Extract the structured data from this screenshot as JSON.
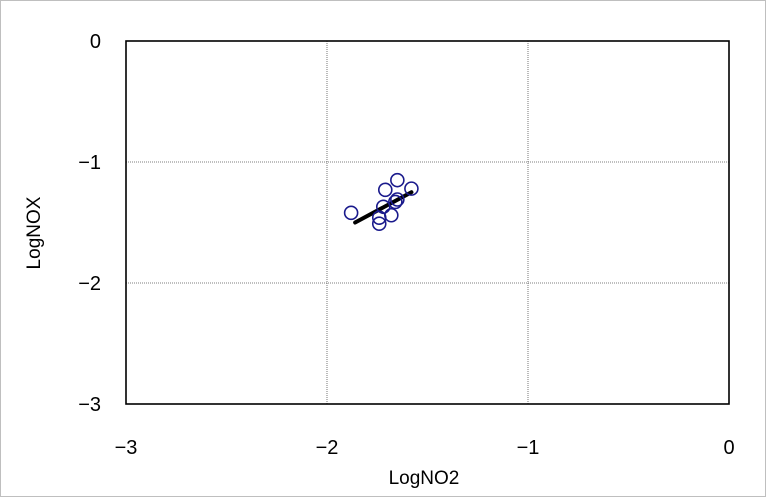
{
  "chart_data": {
    "type": "scatter",
    "xlabel": "LogNO2",
    "ylabel": "LogNOX",
    "xlim": [
      -3,
      0
    ],
    "ylim": [
      -3,
      0
    ],
    "x_ticks": [
      -3,
      -2,
      -1,
      0
    ],
    "y_ticks": [
      0,
      -1,
      -2,
      -3
    ],
    "x_tick_labels": [
      "−3",
      "−2",
      "−1",
      "0"
    ],
    "y_tick_labels": [
      "0",
      "−1",
      "−2",
      "−3"
    ],
    "grid": true,
    "grid_style": "dotted",
    "marker_color": "#1a1a8c",
    "line_color": "#000000",
    "points": [
      {
        "x": -1.88,
        "y": -1.42
      },
      {
        "x": -1.74,
        "y": -1.51
      },
      {
        "x": -1.74,
        "y": -1.46
      },
      {
        "x": -1.72,
        "y": -1.37
      },
      {
        "x": -1.71,
        "y": -1.23
      },
      {
        "x": -1.68,
        "y": -1.44
      },
      {
        "x": -1.66,
        "y": -1.33
      },
      {
        "x": -1.65,
        "y": -1.31
      },
      {
        "x": -1.65,
        "y": -1.15
      },
      {
        "x": -1.58,
        "y": -1.22
      }
    ],
    "fit_line": {
      "x": [
        -1.86,
        -1.58
      ],
      "y": [
        -1.5,
        -1.25
      ]
    }
  }
}
